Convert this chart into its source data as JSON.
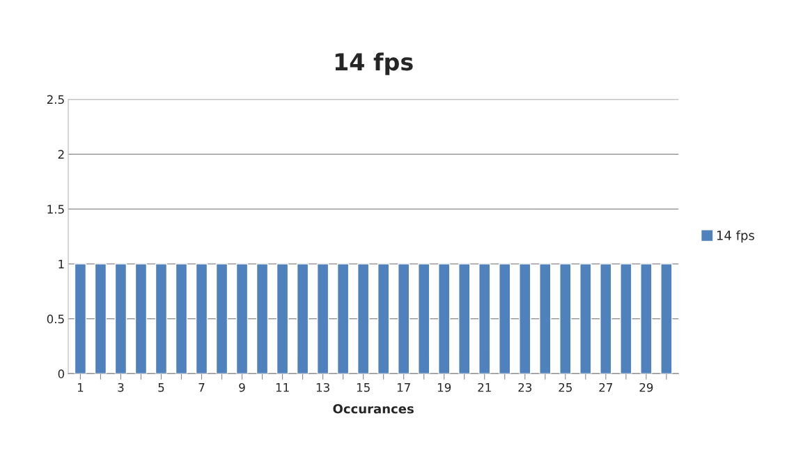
{
  "chart_data": {
    "type": "bar",
    "title": "14 fps",
    "xlabel": "Occurances",
    "categories": [
      "1",
      null,
      "3",
      null,
      "5",
      null,
      "7",
      null,
      "9",
      null,
      "11",
      null,
      "13",
      null,
      "15",
      null,
      "17",
      null,
      "19",
      null,
      "21",
      null,
      "23",
      null,
      "25",
      null,
      "27",
      null,
      "29",
      null
    ],
    "series": [
      {
        "name": "14 fps",
        "color": "#4f81bd",
        "values": [
          1,
          1,
          1,
          1,
          1,
          1,
          1,
          1,
          1,
          1,
          1,
          1,
          1,
          1,
          1,
          1,
          1,
          1,
          1,
          1,
          1,
          1,
          1,
          1,
          1,
          1,
          1,
          1,
          1,
          1
        ]
      }
    ],
    "ylim": [
      0,
      2.5
    ],
    "yticks": [
      0,
      0.5,
      1,
      1.5,
      2,
      2.5
    ],
    "grid": "y",
    "legend": "right"
  }
}
